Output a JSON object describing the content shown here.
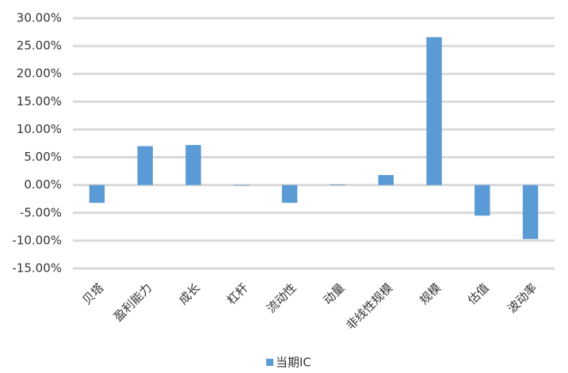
{
  "chart_data": {
    "type": "bar",
    "categories": [
      "贝塔",
      "盈利能力",
      "成长",
      "杠杆",
      "流动性",
      "动量",
      "非线性规模",
      "规模",
      "估值",
      "波动率"
    ],
    "series": [
      {
        "name": "当期IC",
        "color": "#5b9bd5",
        "values": [
          -3.2,
          7.0,
          7.2,
          -0.1,
          -3.2,
          0.1,
          1.8,
          26.6,
          -5.5,
          -9.7
        ]
      }
    ],
    "ylim": [
      -15,
      30
    ],
    "yticks": [
      {
        "value": -15,
        "label": "-15.00%"
      },
      {
        "value": -10,
        "label": "-10.00%"
      },
      {
        "value": -5,
        "label": "-5.00%"
      },
      {
        "value": 0,
        "label": "0.00%"
      },
      {
        "value": 5,
        "label": "5.00%"
      },
      {
        "value": 10,
        "label": "10.00%"
      },
      {
        "value": 15,
        "label": "15.00%"
      },
      {
        "value": 20,
        "label": "20.00%"
      },
      {
        "value": 25,
        "label": "25.00%"
      },
      {
        "value": 30,
        "label": "30.00%"
      }
    ],
    "grid": true,
    "legend": "bottom"
  }
}
